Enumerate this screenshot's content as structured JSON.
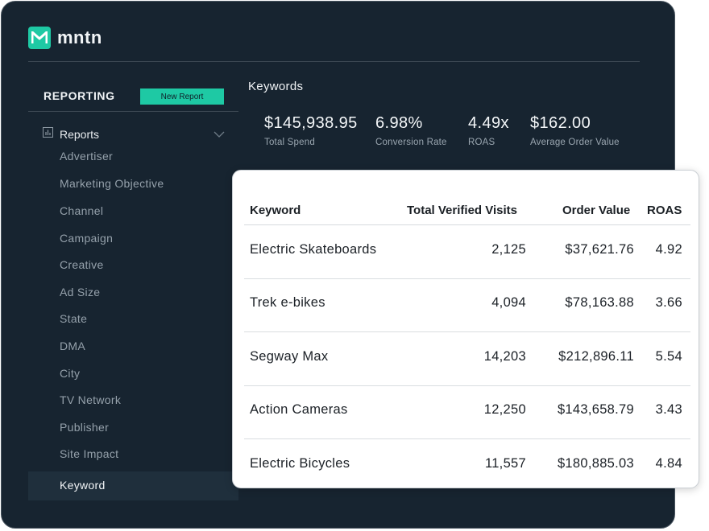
{
  "app": {
    "brand": "mntn",
    "accent_color": "#1ec9a4",
    "background_color": "#172430"
  },
  "sidebar": {
    "title": "REPORTING",
    "new_report_label": "New Report",
    "reports_label": "Reports",
    "reports_icon": "bar-chart-icon",
    "items": [
      {
        "label": "Advertiser"
      },
      {
        "label": "Marketing Objective"
      },
      {
        "label": "Channel"
      },
      {
        "label": "Campaign"
      },
      {
        "label": "Creative"
      },
      {
        "label": "Ad Size"
      },
      {
        "label": "State"
      },
      {
        "label": "DMA"
      },
      {
        "label": "City"
      },
      {
        "label": "TV Network"
      },
      {
        "label": "Publisher"
      },
      {
        "label": "Site Impact"
      },
      {
        "label": "Keyword",
        "active": true
      }
    ]
  },
  "main": {
    "title": "Keywords",
    "kpis": [
      {
        "value": "$145,938.95",
        "label": "Total Spend"
      },
      {
        "value": "6.98%",
        "label": "Conversion Rate"
      },
      {
        "value": "4.49x",
        "label": "ROAS"
      },
      {
        "value": "$162.00",
        "label": "Average Order Value"
      }
    ]
  },
  "table": {
    "columns": [
      "Keyword",
      "Total Verified Visits",
      "Order Value",
      "ROAS"
    ],
    "rows": [
      {
        "keyword": "Electric Skateboards",
        "visits": "2,125",
        "order_value": "$37,621.76",
        "roas": "4.92"
      },
      {
        "keyword": "Trek e-bikes",
        "visits": "4,094",
        "order_value": "$78,163.88",
        "roas": "3.66"
      },
      {
        "keyword": "Segway Max",
        "visits": "14,203",
        "order_value": "$212,896.11",
        "roas": "5.54"
      },
      {
        "keyword": "Action Cameras",
        "visits": "12,250",
        "order_value": "$143,658.79",
        "roas": "3.43"
      },
      {
        "keyword": "Electric Bicycles",
        "visits": "11,557",
        "order_value": "$180,885.03",
        "roas": "4.84"
      }
    ]
  }
}
